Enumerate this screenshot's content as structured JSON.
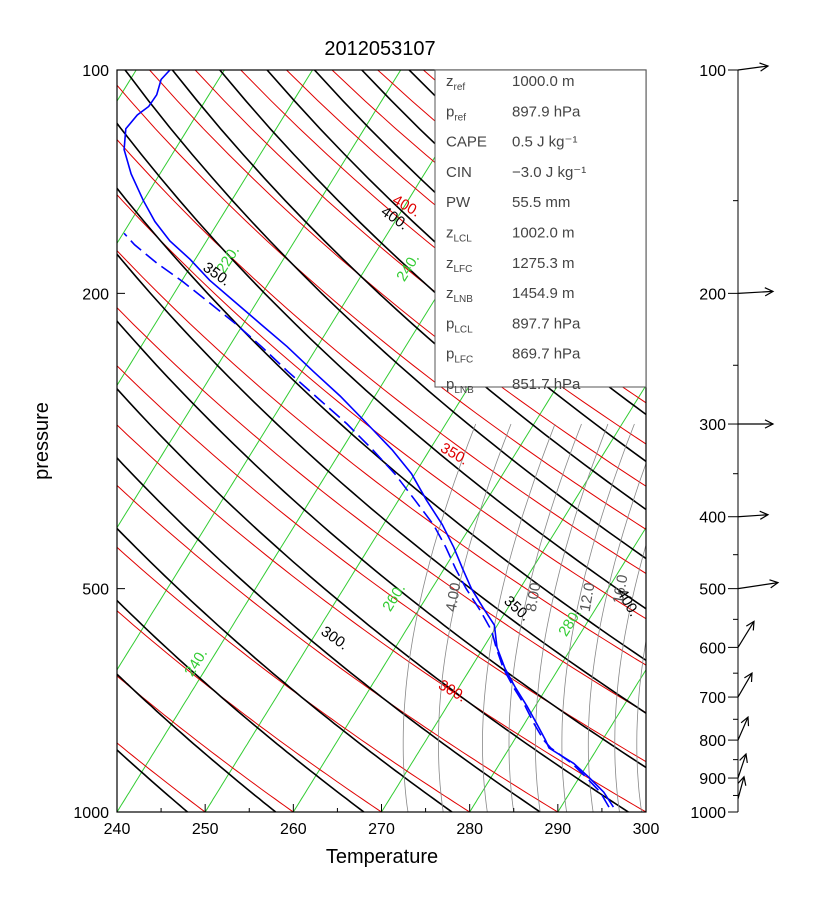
{
  "chart_data": {
    "type": "line",
    "title": "2012053107",
    "xlabel": "Temperature",
    "ylabel": "pressure",
    "xlim": [
      240,
      300
    ],
    "ylim": [
      1000,
      100
    ],
    "y_scale": "log",
    "x_ticks": [
      "240",
      "250",
      "260",
      "270",
      "280",
      "290",
      "300"
    ],
    "y_ticks": [
      "100",
      "200",
      "500",
      "1000"
    ],
    "wind_axis_ticks": [
      "100",
      "200",
      "300",
      "400",
      "500",
      "600",
      "700",
      "800",
      "900",
      "1000"
    ],
    "isotherm_labels": [
      "220.",
      "240.",
      "260.",
      "280.",
      "240."
    ],
    "dry_adiabat_labels": [
      "300.",
      "350.",
      "400."
    ],
    "moist_adiabat_labels": [
      "300.",
      "350.",
      "400.",
      "350.",
      "400."
    ],
    "mixing_ratio_labels": [
      "4.00",
      "8.00",
      "12.0",
      "16.0"
    ],
    "colors": {
      "isotherm": "#33cc33",
      "dry_adiabat": "#e00000",
      "moist_adiabat": "#000000",
      "mixing_ratio": "#888888",
      "profile": "#0000ff"
    },
    "series": [
      {
        "name": "",
        "style": "solid",
        "color": "#0000ff",
        "points": [
          [
            296.3,
            985
          ],
          [
            295.2,
            940
          ],
          [
            293.6,
            900
          ],
          [
            291.8,
            860
          ],
          [
            289.0,
            820
          ],
          [
            288.6,
            800
          ],
          [
            287.6,
            760
          ],
          [
            286.5,
            720
          ],
          [
            285.2,
            680
          ],
          [
            284.0,
            640
          ],
          [
            283.1,
            600
          ],
          [
            282.8,
            560
          ],
          [
            281.5,
            530
          ],
          [
            280.2,
            500
          ],
          [
            279.2,
            470
          ],
          [
            278.2,
            440
          ],
          [
            276.9,
            410
          ],
          [
            275.1,
            380
          ],
          [
            273.4,
            350
          ],
          [
            271.2,
            325
          ],
          [
            268.4,
            300
          ],
          [
            265.3,
            275
          ],
          [
            262.3,
            255
          ],
          [
            259.3,
            236
          ],
          [
            256.3,
            220
          ],
          [
            253.5,
            206
          ],
          [
            250.5,
            192
          ],
          [
            248.3,
            180
          ],
          [
            246.0,
            170
          ],
          [
            244.3,
            160
          ],
          [
            243.0,
            150
          ],
          [
            241.6,
            138
          ],
          [
            240.8,
            128
          ],
          [
            241.0,
            120
          ],
          [
            242.3,
            115
          ],
          [
            243.6,
            112
          ],
          [
            244.5,
            108
          ],
          [
            245.0,
            103
          ],
          [
            246.0,
            100
          ]
        ]
      },
      {
        "name": "",
        "style": "dashed",
        "color": "#0000ff",
        "points": [
          [
            295.8,
            985
          ],
          [
            294.8,
            940
          ],
          [
            293.3,
            900
          ],
          [
            291.6,
            860
          ],
          [
            289.2,
            820
          ],
          [
            288.4,
            800
          ],
          [
            287.3,
            760
          ],
          [
            286.3,
            720
          ],
          [
            285.0,
            680
          ],
          [
            283.8,
            640
          ],
          [
            283.0,
            600
          ],
          [
            282.5,
            570
          ],
          [
            281.2,
            535
          ],
          [
            279.6,
            500
          ],
          [
            278.4,
            470
          ],
          [
            277.3,
            440
          ],
          [
            275.9,
            410
          ],
          [
            273.8,
            380
          ],
          [
            271.5,
            350
          ],
          [
            269.0,
            325
          ],
          [
            266.1,
            300
          ],
          [
            262.5,
            275
          ],
          [
            259.4,
            255
          ],
          [
            256.4,
            236
          ],
          [
            253.5,
            220
          ],
          [
            250.5,
            206
          ],
          [
            247.5,
            193
          ],
          [
            244.5,
            182
          ],
          [
            242.0,
            172
          ],
          [
            240.8,
            166
          ]
        ]
      }
    ],
    "wind_barbs": [
      {
        "p": 100,
        "u": 3.0,
        "v": 0.4
      },
      {
        "p": 200,
        "u": 3.5,
        "v": 0.2
      },
      {
        "p": 300,
        "u": 3.5,
        "v": 0.0
      },
      {
        "p": 400,
        "u": 3.0,
        "v": 0.2
      },
      {
        "p": 500,
        "u": 4.0,
        "v": 0.6
      },
      {
        "p": 600,
        "u": 1.6,
        "v": 2.6
      },
      {
        "p": 700,
        "u": 1.4,
        "v": 2.4
      },
      {
        "p": 800,
        "u": 1.0,
        "v": 2.3
      },
      {
        "p": 900,
        "u": 0.8,
        "v": 2.4
      },
      {
        "p": 960,
        "u": 0.6,
        "v": 2.2
      }
    ]
  },
  "info_panel": {
    "rows": [
      {
        "label": "z",
        "sub": "ref",
        "value": "1000.0 m"
      },
      {
        "label": "p",
        "sub": "ref",
        "value": "897.9 hPa"
      },
      {
        "label": "CAPE",
        "sub": "",
        "value": "0.5 J kg⁻¹"
      },
      {
        "label": "CIN",
        "sub": "",
        "value": "−3.0 J kg⁻¹"
      },
      {
        "label": "PW",
        "sub": "",
        "value": "55.5 mm"
      },
      {
        "label": "z",
        "sub": "LCL",
        "value": "1002.0 m"
      },
      {
        "label": "z",
        "sub": "LFC",
        "value": "1275.3 m"
      },
      {
        "label": "z",
        "sub": "LNB",
        "value": "1454.9 m"
      },
      {
        "label": "p",
        "sub": "LCL",
        "value": "897.7 hPa"
      },
      {
        "label": "p",
        "sub": "LFC",
        "value": "869.7 hPa"
      },
      {
        "label": "p",
        "sub": "LNB",
        "value": "851.7 hPa"
      }
    ]
  }
}
